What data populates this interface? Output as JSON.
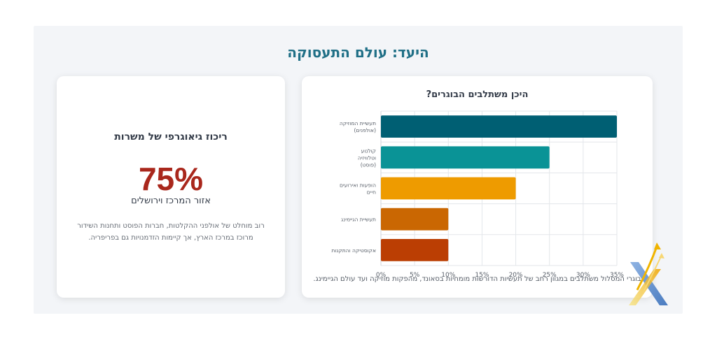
{
  "page": {
    "title": "היעד: עולם התעסוקה"
  },
  "chart_card": {
    "caption": "בוגרי המסלול משתלבים במגוון רחב של תעשיות הדורשות מומחיות בסאונד, מהפקות מוזיקה ועד עולם הגיימינג."
  },
  "stat_card": {
    "heading": "ריכוז גיאוגרפי של משרות",
    "value": "75%",
    "label": "אזור המרכז וירושלים",
    "description": "רוב מוחלט של אולפני ההקלטות, חברות הפוסט ותחנות השידור מרוכז במרכז הארץ, אך קיימות הזדמנויות גם בפריפריה."
  },
  "chart_data": {
    "type": "bar",
    "orientation": "horizontal",
    "title": "היכן משתלבים הבוגרים?",
    "categories": [
      [
        "תעשיית המוזיקה",
        "(אולפנים)"
      ],
      [
        "קולנוע",
        "וטלוויזיה",
        "(פוסט)"
      ],
      [
        "הופעות ואירועים",
        "חיים"
      ],
      [
        "תעשיית הגיימינג"
      ],
      [
        "אקוסטיקה והתקנות"
      ]
    ],
    "values": [
      35,
      25,
      20,
      10,
      10
    ],
    "colors": [
      "#005f73",
      "#0a9396",
      "#ee9b00",
      "#ca6702",
      "#bb3e03"
    ],
    "xlim": [
      0,
      35
    ],
    "xticks": [
      0,
      5,
      10,
      15,
      20,
      25,
      30,
      35
    ],
    "tick_suffix": "%",
    "grid": true
  }
}
